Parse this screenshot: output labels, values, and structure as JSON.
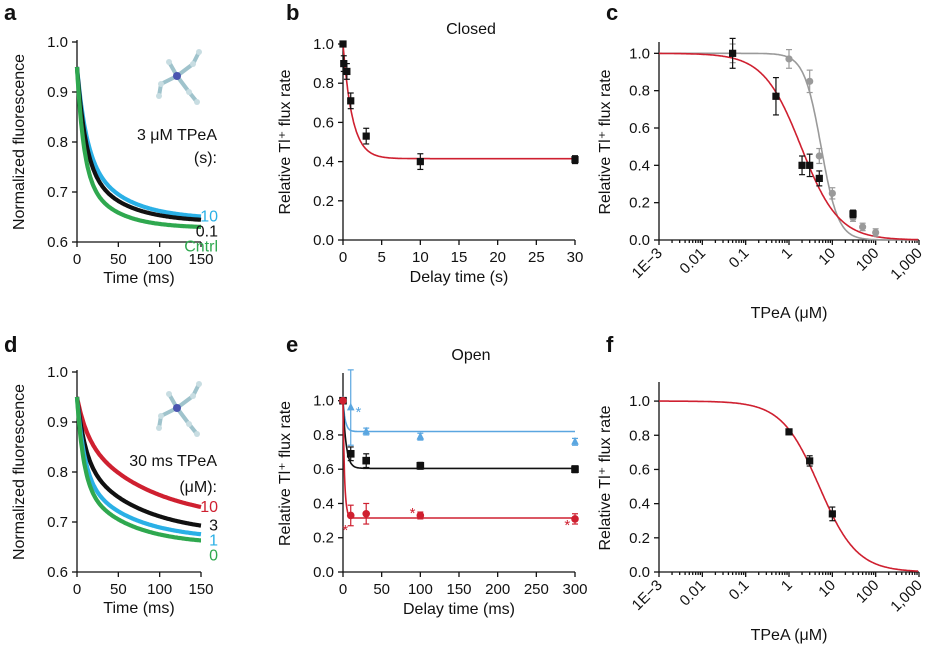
{
  "colors": {
    "black": "#111111",
    "blue": "#2ab0e6",
    "green": "#2fa84f",
    "red": "#cf2030",
    "lightblue": "#5aa6e0",
    "gray": "#9a9a9a",
    "darkred": "#c62828"
  },
  "chart_data": [
    {
      "id": "a",
      "panel_label": "a",
      "type": "line",
      "xlabel": "Time (ms)",
      "ylabel": "Normalized fluorescence",
      "xlim": [
        0,
        150
      ],
      "ylim": [
        0.6,
        1.0
      ],
      "xticks": [
        0,
        50,
        100,
        150
      ],
      "xtick_labels": [
        "0",
        "50",
        "100",
        "150"
      ],
      "yticks": [
        0.6,
        0.7,
        0.8,
        0.9,
        1.0
      ],
      "ytick_labels": [
        "0.6",
        "0.7",
        "0.8",
        "0.9",
        "1.0"
      ],
      "annotation": [
        "3 μM TPeA",
        "(s):"
      ],
      "series": [
        {
          "name": "10",
          "color": "#2ab0e6",
          "y0": 0.95,
          "yinf": 0.645,
          "tau1": 11,
          "tau2": 48,
          "f1": 0.55
        },
        {
          "name": "0.1",
          "color": "#111111",
          "y0": 0.95,
          "yinf": 0.64,
          "tau1": 10,
          "tau2": 45,
          "f1": 0.6
        },
        {
          "name": "Cntrl",
          "color": "#2fa84f",
          "y0": 0.95,
          "yinf": 0.628,
          "tau1": 8,
          "tau2": 38,
          "f1": 0.65
        }
      ]
    },
    {
      "id": "b",
      "panel_label": "b",
      "type": "scatter",
      "title": "Closed",
      "xlabel": "Delay time (s)",
      "ylabel": "Relative Tl⁺ flux rate",
      "xlim": [
        0,
        30
      ],
      "ylim": [
        0,
        1.0
      ],
      "xticks": [
        0,
        5,
        10,
        15,
        20,
        25,
        30
      ],
      "xtick_labels": [
        "0",
        "5",
        "10",
        "15",
        "20",
        "25",
        "30"
      ],
      "yticks": [
        0,
        0.2,
        0.4,
        0.6,
        0.8,
        1.0
      ],
      "ytick_labels": [
        "0.0",
        "0.2",
        "0.4",
        "0.6",
        "0.8",
        "1.0"
      ],
      "points": {
        "color": "#111111",
        "marker": "square",
        "x": [
          0,
          0.1,
          0.5,
          1,
          3,
          10,
          30
        ],
        "y": [
          1.0,
          0.9,
          0.86,
          0.71,
          0.53,
          0.4,
          0.41
        ],
        "err": [
          0.0,
          0.04,
          0.04,
          0.04,
          0.04,
          0.04,
          0.02
        ]
      },
      "fit": {
        "color": "#cf2030",
        "type": "exp",
        "y0": 1.0,
        "yinf": 0.415,
        "tau": 1.2
      }
    },
    {
      "id": "c",
      "panel_label": "c",
      "type": "scatter",
      "xlabel": "TPeA (μM)",
      "ylabel": "Relative Tl⁺ flux rate",
      "xscale": "log",
      "xlim": [
        0.001,
        1000
      ],
      "ylim": [
        0,
        1.05
      ],
      "xticks": [
        0.001,
        0.01,
        0.1,
        1,
        10,
        100,
        1000
      ],
      "xtick_labels": [
        "1E−3",
        "0.01",
        "0.1",
        "1",
        "10",
        "100",
        "1,000"
      ],
      "yticks": [
        0,
        0.2,
        0.4,
        0.6,
        0.8,
        1.0
      ],
      "ytick_labels": [
        "0.0",
        "0.2",
        "0.4",
        "0.6",
        "0.8",
        "1.0"
      ],
      "series": [
        {
          "color": "#9a9a9a",
          "marker": "circle",
          "x": [
            0.05,
            1,
            3,
            5,
            10,
            30,
            50,
            100
          ],
          "y": [
            1.0,
            0.97,
            0.85,
            0.45,
            0.25,
            0.12,
            0.07,
            0.04
          ],
          "err": [
            0.05,
            0.05,
            0.06,
            0.04,
            0.03,
            0.02,
            0.02,
            0.02
          ],
          "fit": {
            "ic50": 5.5,
            "n": 2.2,
            "color": "#9a9a9a"
          }
        },
        {
          "color": "#111111",
          "marker": "square",
          "x": [
            0.05,
            0.5,
            2,
            3,
            5,
            30
          ],
          "y": [
            1.0,
            0.77,
            0.4,
            0.4,
            0.33,
            0.14
          ],
          "err": [
            0.08,
            0.1,
            0.05,
            0.06,
            0.04,
            0.02
          ],
          "fit": {
            "ic50": 1.9,
            "n": 1.0,
            "color": "#cf2030"
          }
        }
      ]
    },
    {
      "id": "d",
      "panel_label": "d",
      "type": "line",
      "xlabel": "Time (ms)",
      "ylabel": "Normalized fluorescence",
      "xlim": [
        0,
        150
      ],
      "ylim": [
        0.6,
        1.0
      ],
      "xticks": [
        0,
        50,
        100,
        150
      ],
      "xtick_labels": [
        "0",
        "50",
        "100",
        "150"
      ],
      "yticks": [
        0.6,
        0.7,
        0.8,
        0.9,
        1.0
      ],
      "ytick_labels": [
        "0.6",
        "0.7",
        "0.8",
        "0.9",
        "1.0"
      ],
      "annotation": [
        "30 ms TPeA",
        "(μM):"
      ],
      "series": [
        {
          "name": "10",
          "color": "#cf2030",
          "y0": 0.95,
          "yinf": 0.7,
          "tau1": 12,
          "tau2": 85,
          "f1": 0.3
        },
        {
          "name": "3",
          "color": "#111111",
          "y0": 0.95,
          "yinf": 0.675,
          "tau1": 10,
          "tau2": 70,
          "f1": 0.45
        },
        {
          "name": "1",
          "color": "#2ab0e6",
          "y0": 0.95,
          "yinf": 0.665,
          "tau1": 9,
          "tau2": 60,
          "f1": 0.55
        },
        {
          "name": "0",
          "color": "#2fa84f",
          "y0": 0.95,
          "yinf": 0.655,
          "tau1": 8,
          "tau2": 55,
          "f1": 0.58
        }
      ]
    },
    {
      "id": "e",
      "panel_label": "e",
      "type": "scatter",
      "title": "Open",
      "xlabel": "Delay time (ms)",
      "ylabel": "Relative Tl⁺ flux rate",
      "xlim": [
        0,
        300
      ],
      "ylim": [
        0,
        1.15
      ],
      "xticks": [
        0,
        50,
        100,
        150,
        200,
        250,
        300
      ],
      "xtick_labels": [
        "0",
        "50",
        "100",
        "150",
        "200",
        "250",
        "300"
      ],
      "yticks": [
        0,
        0.2,
        0.4,
        0.6,
        0.8,
        1.0
      ],
      "ytick_labels": [
        "0.0",
        "0.2",
        "0.4",
        "0.6",
        "0.8",
        "1.0"
      ],
      "series": [
        {
          "color": "#5aa6e0",
          "marker": "triangle",
          "x": [
            0,
            10,
            30,
            100,
            300
          ],
          "y": [
            1.0,
            0.96,
            0.82,
            0.79,
            0.76
          ],
          "err": [
            0.0,
            0.22,
            0.02,
            0.02,
            0.02
          ],
          "fit": {
            "y0": 1.0,
            "yinf": 0.82,
            "tau": 3
          },
          "stars": [
            [
              20,
              0.94
            ]
          ]
        },
        {
          "color": "#111111",
          "marker": "square",
          "x": [
            0,
            10,
            30,
            100,
            300
          ],
          "y": [
            1.0,
            0.69,
            0.65,
            0.62,
            0.6
          ],
          "err": [
            0.0,
            0.04,
            0.04,
            0.02,
            0.02
          ],
          "fit": {
            "y0": 1.0,
            "yinf": 0.605,
            "tau": 4
          }
        },
        {
          "color": "#cf2030",
          "marker": "circle",
          "x": [
            0,
            10,
            30,
            100,
            300
          ],
          "y": [
            1.0,
            0.33,
            0.34,
            0.33,
            0.31
          ],
          "err": [
            0.0,
            0.06,
            0.06,
            0.02,
            0.03
          ],
          "fit": {
            "y0": 1.0,
            "yinf": 0.315,
            "tau": 2
          },
          "stars": [
            [
              3,
              0.25
            ],
            [
              90,
              0.35
            ],
            [
              290,
              0.28
            ]
          ]
        }
      ]
    },
    {
      "id": "f",
      "panel_label": "f",
      "type": "scatter",
      "xlabel": "TPeA (μM)",
      "ylabel": "Relative Tl⁺ flux rate",
      "xscale": "log",
      "xlim": [
        0.001,
        1000
      ],
      "ylim": [
        0,
        1.1
      ],
      "xticks": [
        0.001,
        0.01,
        0.1,
        1,
        10,
        100,
        1000
      ],
      "xtick_labels": [
        "1E−3",
        "0.01",
        "0.1",
        "1",
        "10",
        "100",
        "1,000"
      ],
      "yticks": [
        0,
        0.2,
        0.4,
        0.6,
        0.8,
        1.0
      ],
      "ytick_labels": [
        "0.0",
        "0.2",
        "0.4",
        "0.6",
        "0.8",
        "1.0"
      ],
      "series": [
        {
          "color": "#111111",
          "marker": "square",
          "x": [
            1,
            3,
            10
          ],
          "y": [
            0.82,
            0.65,
            0.34
          ],
          "err": [
            0.015,
            0.03,
            0.04
          ],
          "fit": {
            "ic50": 5.0,
            "n": 1.0,
            "color": "#cf2030"
          }
        }
      ]
    }
  ]
}
